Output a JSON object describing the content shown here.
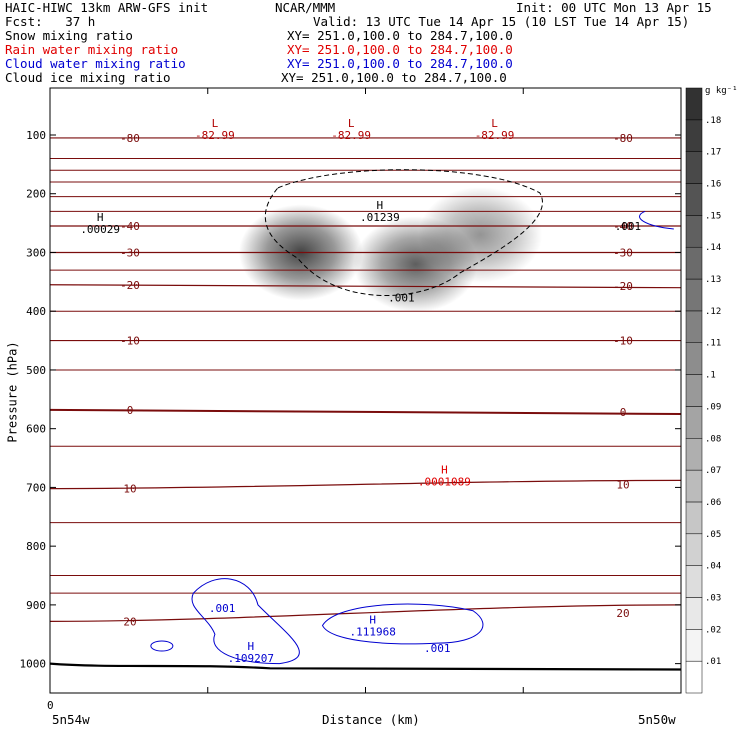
{
  "header": {
    "model": "HAIC-HIWC 13km ARW-GFS init",
    "org": "NCAR/MMM",
    "init": "Init: 00 UTC Mon 13 Apr 15",
    "fcst": "Fcst:   37 h",
    "valid": "Valid: 13 UTC Tue 14 Apr 15 (10 LST Tue 14 Apr 15)"
  },
  "fields": [
    {
      "name": "Snow mixing ratio",
      "xy": "XY= 251.0,100.0 to 284.7,100.0",
      "color": "#000000"
    },
    {
      "name": "Rain water mixing ratio",
      "xy": "XY= 251.0,100.0 to 284.7,100.0",
      "color": "#e00000"
    },
    {
      "name": "Cloud water mixing ratio",
      "xy": "XY= 251.0,100.0 to 284.7,100.0",
      "color": "#0000d0"
    },
    {
      "name": "Cloud ice mixing ratio",
      "xy": "XY= 251.0,100.0 to 284.7,100.0",
      "color": "#000000"
    }
  ],
  "chart_data": {
    "type": "heatmap",
    "title": "Snow mixing ratio",
    "xlabel": "Distance (km)",
    "ylabel": "Pressure (hPa)",
    "x_left_label": "5n54w",
    "x_right_label": "5n50w",
    "x_ticks": [
      "0"
    ],
    "x_range": [
      0,
      440
    ],
    "y_ticks": [
      100,
      200,
      300,
      400,
      500,
      600,
      700,
      800,
      900,
      1000
    ],
    "y_range": [
      20,
      1050
    ],
    "colorbar": {
      "unit": "g kg⁻¹",
      "min": 0,
      "max": 0.19,
      "ticks": [
        ".01",
        ".02",
        ".03",
        ".04",
        ".05",
        ".06",
        ".07",
        ".08",
        ".09",
        ".1",
        ".11",
        ".12",
        ".13",
        ".14",
        ".15",
        ".16",
        ".17",
        ".18"
      ]
    },
    "snow_blobs": [
      {
        "x": 175,
        "p": 300,
        "max": 0.14
      },
      {
        "x": 255,
        "p": 320,
        "max": 0.12
      },
      {
        "x": 300,
        "p": 270,
        "max": 0.08
      }
    ],
    "temperature_contours": [
      {
        "label": "-80",
        "p_left": 105,
        "p_right": 105
      },
      {
        "label": "-40",
        "p_left": 255,
        "p_right": 255
      },
      {
        "label": "-30",
        "p_left": 300,
        "p_right": 300
      },
      {
        "label": "-20",
        "p_left": 355,
        "p_right": 360
      },
      {
        "label": "-10",
        "p_left": 450,
        "p_right": 450
      },
      {
        "label": "0",
        "p_left": 568,
        "p_right": 575
      },
      {
        "label": "10",
        "p_left": 702,
        "p_right": 688
      },
      {
        "label": "20",
        "p_left": 928,
        "p_right": 900
      }
    ],
    "extrema_labels": [
      {
        "type": "L",
        "value": "-82.99",
        "x": 115,
        "p": 100,
        "color": "#b00000"
      },
      {
        "type": "L",
        "value": "-82.99",
        "x": 210,
        "p": 100,
        "color": "#b00000"
      },
      {
        "type": "L",
        "value": "-82.99",
        "x": 310,
        "p": 100,
        "color": "#b00000"
      },
      {
        "type": "H",
        "value": ".00029",
        "x": 35,
        "p": 260,
        "color": "#000000"
      },
      {
        "type": "H",
        "value": ".01239",
        "x": 230,
        "p": 240,
        "color": "#000000"
      },
      {
        "type": "H",
        "value": ".0001089",
        "x": 275,
        "p": 690,
        "color": "#e00000"
      },
      {
        "type": "H",
        "value": ".111968",
        "x": 225,
        "p": 945,
        "color": "#0000d0"
      },
      {
        "type": "H",
        "value": ".109207",
        "x": 140,
        "p": 990,
        "color": "#0000d0"
      }
    ],
    "contour_labels": [
      {
        "value": ".001",
        "x": 245,
        "p": 377,
        "color": "#000000"
      },
      {
        "value": ".001",
        "x": 403,
        "p": 255,
        "color": "#000000"
      },
      {
        "value": ".001",
        "x": 120,
        "p": 905,
        "color": "#0000d0"
      },
      {
        "value": ".001",
        "x": 270,
        "p": 973,
        "color": "#0000d0"
      }
    ]
  }
}
